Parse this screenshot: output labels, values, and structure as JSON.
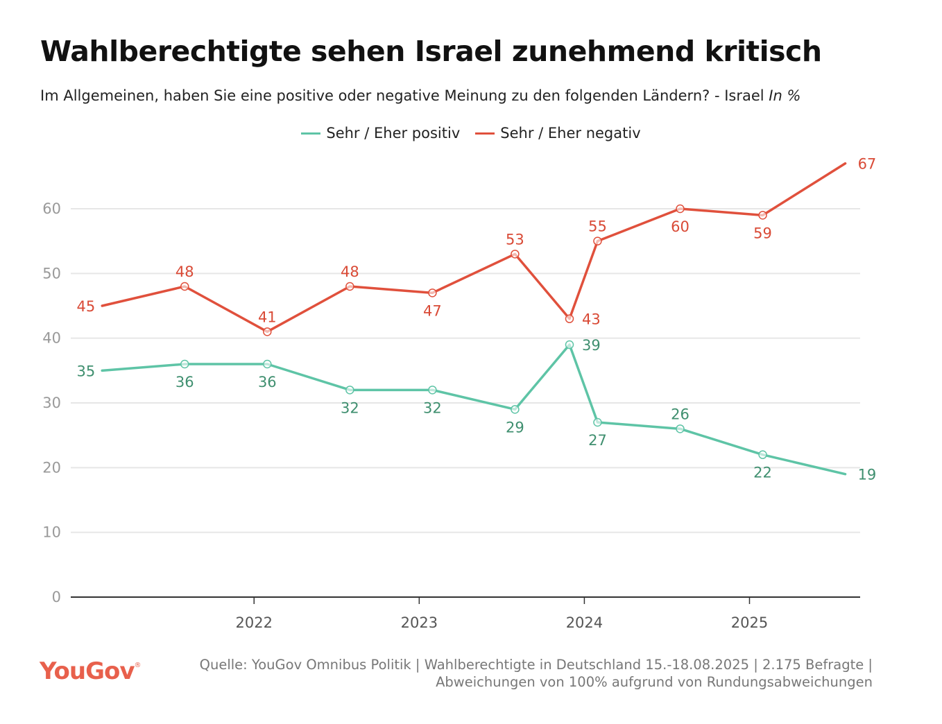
{
  "title": "Wahlberechtigte sehen Israel zunehmend kritisch",
  "subtitle_main": "Im Allgemeinen, haben Sie eine positive oder negative Meinung zu den folgenden Ländern? - Israel ",
  "subtitle_unit": "In %",
  "footer": {
    "logo": "YouGov",
    "logo_mark": "®",
    "source_line1": "Quelle: YouGov Omnibus Politik | Wahlberechtigte in Deutschland 15.-18.08.2025 | 2.175 Befragte |",
    "source_line2": "Abweichungen von 100% aufgrund von Rundungsabweichungen"
  },
  "chart_data": {
    "type": "line",
    "title": "Wahlberechtigte sehen Israel zunehmend kritisch",
    "subtitle": "Im Allgemeinen, haben Sie eine positive oder negative Meinung zu den folgenden Ländern? - Israel In %",
    "xlabel": "",
    "ylabel": "In %",
    "x": [
      2021.08,
      2021.58,
      2022.08,
      2022.58,
      2023.08,
      2023.58,
      2023.91,
      2024.08,
      2024.58,
      2025.08,
      2025.58
    ],
    "xlim": [
      2020.89,
      2025.67
    ],
    "x_ticks": [
      2022,
      2023,
      2024,
      2025
    ],
    "x_tick_labels": [
      "2022",
      "2023",
      "2024",
      "2025"
    ],
    "ylim": [
      0,
      60
    ],
    "y_ticks": [
      0,
      10,
      20,
      30,
      40,
      50,
      60
    ],
    "y_tick_labels": [
      "0",
      "10",
      "20",
      "30",
      "40",
      "50",
      "60"
    ],
    "grid": true,
    "legend_position": "top-center",
    "series": [
      {
        "name": "Sehr / Eher positiv",
        "color": "#5ec4a6",
        "label_color": "#3f8f6f",
        "values": [
          35,
          36,
          36,
          32,
          32,
          29,
          39,
          27,
          26,
          22,
          19
        ],
        "label_positions": [
          "left",
          "below",
          "below",
          "below",
          "below",
          "below",
          "right",
          "below",
          "above",
          "below",
          "right"
        ]
      },
      {
        "name": "Sehr / Eher negativ",
        "color": "#e0503c",
        "label_color": "#d94a36",
        "values": [
          45,
          48,
          41,
          48,
          47,
          53,
          43,
          55,
          60,
          59,
          67
        ],
        "label_positions": [
          "left",
          "above",
          "above",
          "above",
          "below",
          "above",
          "right",
          "above",
          "below",
          "below",
          "right"
        ]
      }
    ]
  }
}
